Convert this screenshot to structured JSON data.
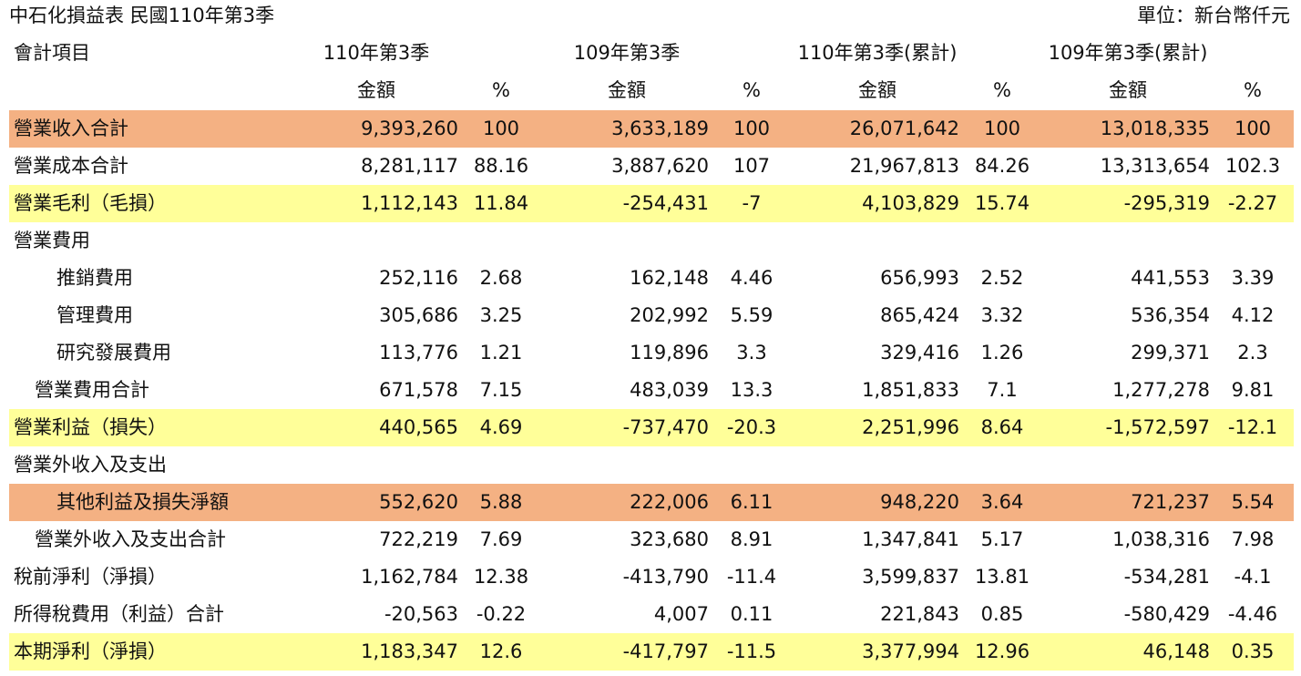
{
  "header": {
    "title": "中石化損益表 民國110年第3季",
    "unit": "單位：新台幣仟元"
  },
  "table": {
    "column_headers": [
      "會計項目",
      "110年第3季",
      "109年第3季",
      "110年第3季(累計)",
      "109年第3季(累計)"
    ],
    "sub_headers": [
      "金額",
      "%",
      "金額",
      "%",
      "金額",
      "%",
      "金額",
      "%"
    ],
    "rows": [
      [
        "營業收入合計",
        "9,393,260",
        "100",
        "3,633,189",
        "100",
        "26,071,642",
        "100",
        "13,018,335",
        "100"
      ],
      [
        "營業成本合計",
        "8,281,117",
        "88.16",
        "3,887,620",
        "107",
        "21,967,813",
        "84.26",
        "13,313,654",
        "102.3"
      ],
      [
        "營業毛利（毛損）",
        "1,112,143",
        "11.84",
        "-254,431",
        "-7",
        "4,103,829",
        "15.74",
        "-295,319",
        "-2.27"
      ],
      [
        "營業費用"
      ],
      [
        "推銷費用",
        "252,116",
        "2.68",
        "162,148",
        "4.46",
        "656,993",
        "2.52",
        "441,553",
        "3.39"
      ],
      [
        "管理費用",
        "305,686",
        "3.25",
        "202,992",
        "5.59",
        "865,424",
        "3.32",
        "536,354",
        "4.12"
      ],
      [
        "研究發展費用",
        "113,776",
        "1.21",
        "119,896",
        "3.3",
        "329,416",
        "1.26",
        "299,371",
        "2.3"
      ],
      [
        "營業費用合計",
        "671,578",
        "7.15",
        "483,039",
        "13.3",
        "1,851,833",
        "7.1",
        "1,277,278",
        "9.81"
      ],
      [
        "營業利益（損失）",
        "440,565",
        "4.69",
        "-737,470",
        "-20.3",
        "2,251,996",
        "8.64",
        "-1,572,597",
        "-12.1"
      ],
      [
        "營業外收入及支出"
      ],
      [
        "其他利益及損失淨額",
        "552,620",
        "5.88",
        "222,006",
        "6.11",
        "948,220",
        "3.64",
        "721,237",
        "5.54"
      ],
      [
        "營業外收入及支出合計",
        "722,219",
        "7.69",
        "323,680",
        "8.91",
        "1,347,841",
        "5.17",
        "1,038,316",
        "7.98"
      ],
      [
        "稅前淨利（淨損）",
        "1,162,784",
        "12.38",
        "-413,790",
        "-11.4",
        "3,599,837",
        "13.81",
        "-534,281",
        "-4.1"
      ],
      [
        "所得稅費用（利益）合計",
        "-20,563",
        "-0.22",
        "4,007",
        "0.11",
        "221,843",
        "0.85",
        "-580,429",
        "-4.46"
      ],
      [
        "本期淨利（淨損）",
        "1,183,347",
        "12.6",
        "-417,797",
        "-11.5",
        "3,377,994",
        "12.96",
        "46,148",
        "0.35"
      ]
    ]
  }
}
